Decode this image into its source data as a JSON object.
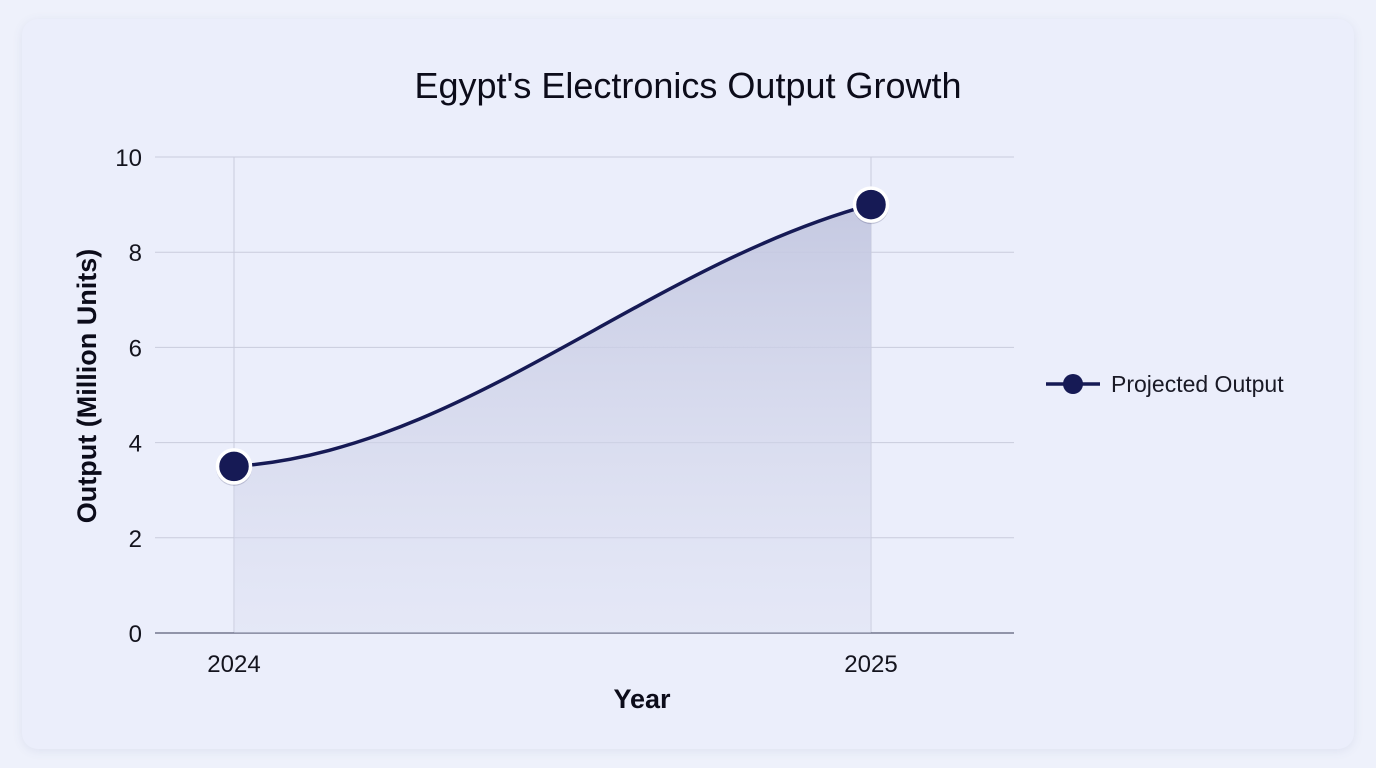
{
  "chart_data": {
    "type": "area",
    "title": "Egypt's Electronics Output Growth",
    "xlabel": "Year",
    "ylabel": "Output (Million Units)",
    "categories": [
      "2024",
      "2025"
    ],
    "series": [
      {
        "name": "Projected Output",
        "values": [
          3.5,
          9.0
        ]
      }
    ],
    "ylim": [
      0,
      10
    ],
    "yticks": [
      "0",
      "2",
      "4",
      "6",
      "8",
      "10"
    ],
    "grid": true,
    "legend": "right",
    "colors": {
      "line": "#161a55",
      "fill": "#c7cbe3",
      "marker_stroke": "#ffffff"
    }
  }
}
